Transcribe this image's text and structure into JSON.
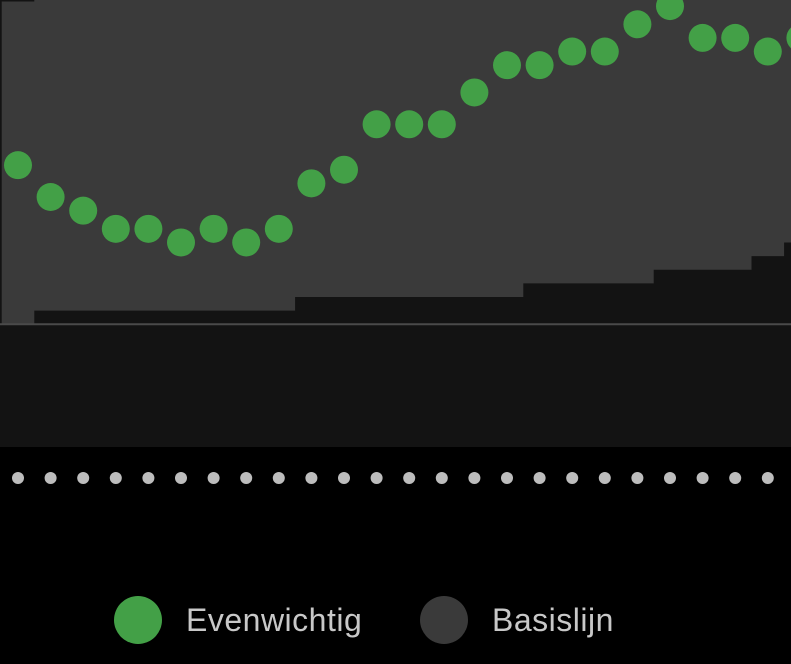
{
  "chart_data": {
    "type": "scatter",
    "series": [
      {
        "name": "Evenwichtig",
        "color": "#43a047",
        "values": [
          0.62,
          0.55,
          0.52,
          0.48,
          0.48,
          0.45,
          0.48,
          0.45,
          0.48,
          0.58,
          0.61,
          0.71,
          0.71,
          0.71,
          0.78,
          0.84,
          0.84,
          0.87,
          0.87,
          0.93,
          0.97,
          0.9,
          0.9,
          0.87,
          0.9
        ]
      }
    ],
    "baseline": {
      "name": "Basislijn",
      "color": "#3a3a3a",
      "lower": [
        0.27,
        0.3,
        0.3,
        0.3,
        0.3,
        0.3,
        0.3,
        0.3,
        0.3,
        0.33,
        0.33,
        0.33,
        0.33,
        0.33,
        0.33,
        0.33,
        0.36,
        0.36,
        0.36,
        0.36,
        0.39,
        0.39,
        0.39,
        0.42,
        0.45
      ],
      "upper": [
        0.98,
        1.01,
        1.01,
        1.01,
        1.01,
        1.01,
        1.01,
        1.01,
        1.01,
        1.01,
        1.01,
        1.01,
        1.01,
        1.01,
        1.01,
        1.01,
        1.04,
        1.04,
        1.04,
        1.04,
        1.04,
        1.04,
        1.04,
        1.04,
        1.04
      ]
    },
    "reference_line": 0.27,
    "ylim": [
      0,
      1.1
    ],
    "grid": false
  },
  "legend": {
    "items": [
      {
        "label": "Evenwichtig",
        "color": "#43a047"
      },
      {
        "label": "Basislijn",
        "color": "#3a3a3a"
      }
    ]
  }
}
